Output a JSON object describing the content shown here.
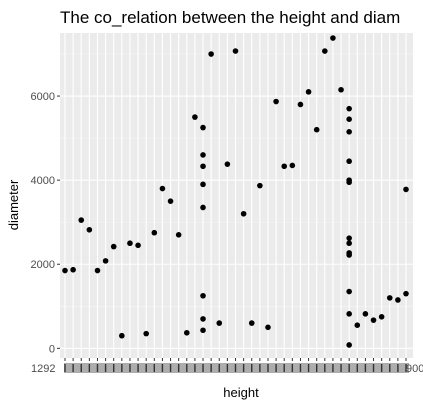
{
  "chart_data": {
    "type": "scatter",
    "title": "The co_relation between the height and diam",
    "xlabel": "height",
    "ylabel": "diameter",
    "x_axis": "categorical (tick labels overprinted and unreadable)",
    "ylim": [
      -230,
      7500
    ],
    "yticks": [
      0,
      2000,
      4000,
      6000
    ],
    "ytick_labels": [
      "0",
      "2000",
      "4000",
      "6000"
    ],
    "xtick_labels_visible": [
      "1292",
      "900"
    ],
    "grid": true,
    "legend": "none",
    "point_color": "#000000",
    "panel_color": "#ebebeb",
    "points": [
      {
        "x": 1,
        "y": 1850
      },
      {
        "x": 2,
        "y": 1870
      },
      {
        "x": 3,
        "y": 3050
      },
      {
        "x": 4,
        "y": 2820
      },
      {
        "x": 5,
        "y": 1850
      },
      {
        "x": 6,
        "y": 2080
      },
      {
        "x": 7,
        "y": 2420
      },
      {
        "x": 8,
        "y": 300
      },
      {
        "x": 9,
        "y": 2500
      },
      {
        "x": 10,
        "y": 2450
      },
      {
        "x": 11,
        "y": 350
      },
      {
        "x": 12,
        "y": 2750
      },
      {
        "x": 13,
        "y": 3800
      },
      {
        "x": 14,
        "y": 3500
      },
      {
        "x": 15,
        "y": 2700
      },
      {
        "x": 16,
        "y": 370
      },
      {
        "x": 17,
        "y": 5500
      },
      {
        "x": 18,
        "y": 5250
      },
      {
        "x": 18,
        "y": 4600
      },
      {
        "x": 18,
        "y": 4330
      },
      {
        "x": 18,
        "y": 3900
      },
      {
        "x": 18,
        "y": 3350
      },
      {
        "x": 18,
        "y": 1250
      },
      {
        "x": 18,
        "y": 700
      },
      {
        "x": 18,
        "y": 430
      },
      {
        "x": 19,
        "y": 7000
      },
      {
        "x": 20,
        "y": 600
      },
      {
        "x": 21,
        "y": 4380
      },
      {
        "x": 22,
        "y": 7070
      },
      {
        "x": 23,
        "y": 3200
      },
      {
        "x": 24,
        "y": 600
      },
      {
        "x": 25,
        "y": 3870
      },
      {
        "x": 26,
        "y": 500
      },
      {
        "x": 27,
        "y": 5870
      },
      {
        "x": 28,
        "y": 4330
      },
      {
        "x": 29,
        "y": 4350
      },
      {
        "x": 30,
        "y": 5800
      },
      {
        "x": 31,
        "y": 6100
      },
      {
        "x": 32,
        "y": 5200
      },
      {
        "x": 33,
        "y": 7070
      },
      {
        "x": 34,
        "y": 7380
      },
      {
        "x": 35,
        "y": 6150
      },
      {
        "x": 36,
        "y": 5700
      },
      {
        "x": 36,
        "y": 5450
      },
      {
        "x": 36,
        "y": 5150
      },
      {
        "x": 36,
        "y": 4450
      },
      {
        "x": 36,
        "y": 4000
      },
      {
        "x": 36,
        "y": 3950
      },
      {
        "x": 36,
        "y": 2620
      },
      {
        "x": 36,
        "y": 2500
      },
      {
        "x": 36,
        "y": 2270
      },
      {
        "x": 36,
        "y": 2220
      },
      {
        "x": 36,
        "y": 1350
      },
      {
        "x": 36,
        "y": 820
      },
      {
        "x": 36,
        "y": 80
      },
      {
        "x": 37,
        "y": 550
      },
      {
        "x": 38,
        "y": 820
      },
      {
        "x": 39,
        "y": 670
      },
      {
        "x": 40,
        "y": 750
      },
      {
        "x": 41,
        "y": 1200
      },
      {
        "x": 42,
        "y": 1150
      },
      {
        "x": 43,
        "y": 1300
      },
      {
        "x": 43,
        "y": 3780
      }
    ]
  }
}
